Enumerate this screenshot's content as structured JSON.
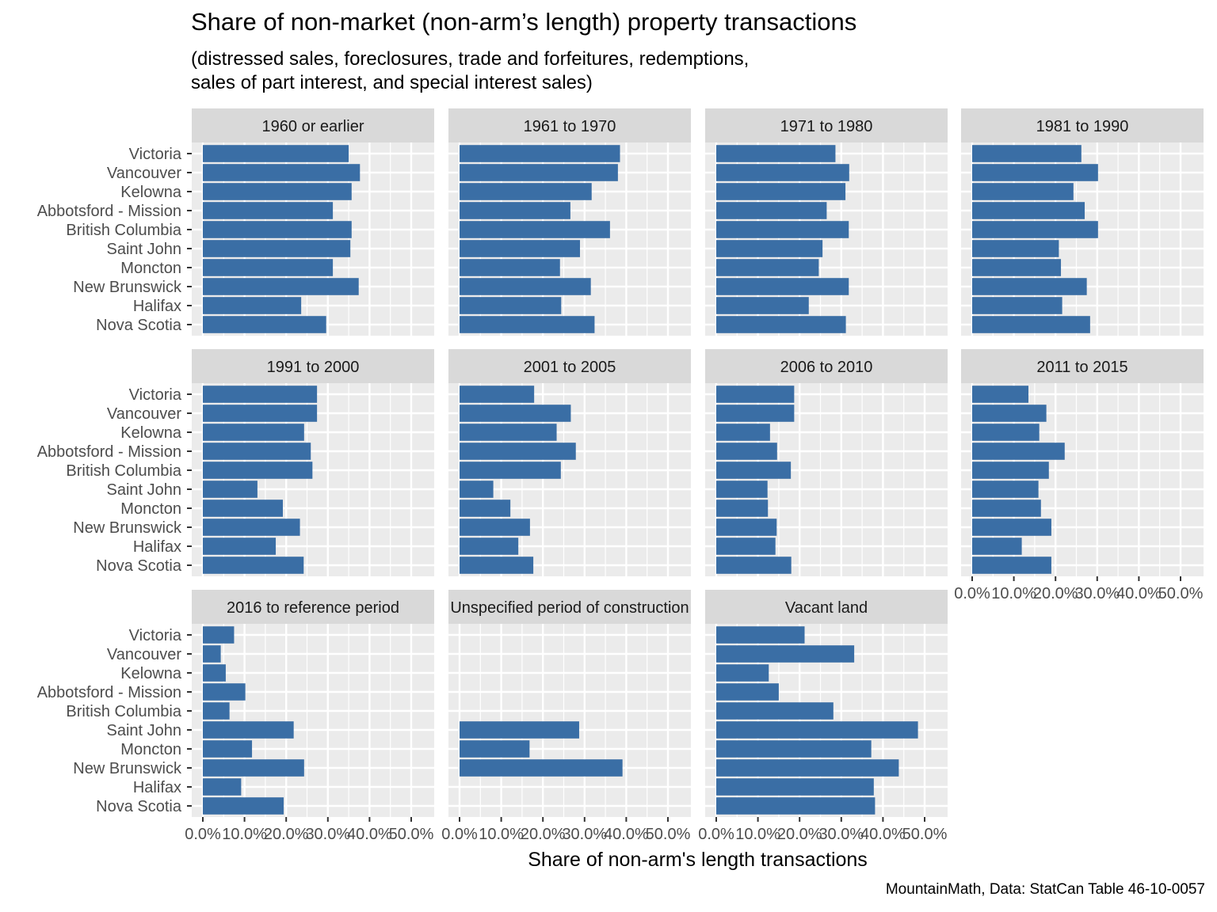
{
  "chart_data": {
    "type": "bar",
    "orientation": "horizontal",
    "title": "Share of non-market (non-arm’s length) property transactions",
    "subtitle_lines": [
      "(distressed sales, foreclosures, trade and forfeitures, redemptions,",
      "sales of part interest, and special interest sales)"
    ],
    "xlabel": "Share of non-arm's length transactions",
    "caption": "MountainMath, Data: StatCan Table 46-10-0057",
    "categories": [
      "Victoria",
      "Vancouver",
      "Kelowna",
      "Abbotsford - Mission",
      "British Columbia",
      "Saint John",
      "Moncton",
      "New Brunswick",
      "Halifax",
      "Nova Scotia"
    ],
    "xlim": [
      0,
      0.5
    ],
    "x_ticks": [
      0,
      0.1,
      0.2,
      0.3,
      0.4,
      0.5
    ],
    "x_tick_labels": [
      "0.0%",
      "10.0%",
      "20.0%",
      "30.0%",
      "40.0%",
      "50.0%"
    ],
    "grid": true,
    "bar_color": "#3a6ea5",
    "panel_background": "#ebebeb",
    "strip_background": "#d9d9d9",
    "facets": [
      {
        "label": "1960 or earlier",
        "values": [
          0.35,
          0.377,
          0.357,
          0.312,
          0.357,
          0.354,
          0.312,
          0.374,
          0.236,
          0.296
        ]
      },
      {
        "label": "1961 to 1970",
        "values": [
          0.385,
          0.38,
          0.317,
          0.266,
          0.361,
          0.289,
          0.241,
          0.315,
          0.244,
          0.324
        ]
      },
      {
        "label": "1971 to 1980",
        "values": [
          0.286,
          0.319,
          0.31,
          0.265,
          0.318,
          0.255,
          0.246,
          0.318,
          0.222,
          0.311
        ]
      },
      {
        "label": "1981 to 1990",
        "values": [
          0.262,
          0.302,
          0.243,
          0.27,
          0.302,
          0.208,
          0.213,
          0.275,
          0.216,
          0.283
        ]
      },
      {
        "label": "1991 to 2000",
        "values": [
          0.274,
          0.274,
          0.243,
          0.259,
          0.263,
          0.131,
          0.192,
          0.233,
          0.175,
          0.242
        ]
      },
      {
        "label": "2001 to 2005",
        "values": [
          0.179,
          0.267,
          0.233,
          0.279,
          0.243,
          0.081,
          0.122,
          0.169,
          0.141,
          0.177
        ]
      },
      {
        "label": "2006 to 2010",
        "values": [
          0.187,
          0.187,
          0.129,
          0.146,
          0.179,
          0.123,
          0.124,
          0.145,
          0.142,
          0.18
        ]
      },
      {
        "label": "2011 to 2015",
        "values": [
          0.135,
          0.178,
          0.161,
          0.222,
          0.184,
          0.159,
          0.165,
          0.19,
          0.119,
          0.19
        ]
      },
      {
        "label": "2016 to reference period",
        "values": [
          0.075,
          0.043,
          0.055,
          0.102,
          0.064,
          0.218,
          0.118,
          0.243,
          0.092,
          0.194
        ]
      },
      {
        "label": "Unspecified period of construction",
        "values": [
          null,
          null,
          null,
          null,
          null,
          0.287,
          0.168,
          0.391,
          null,
          null
        ]
      },
      {
        "label": "Vacant land",
        "values": [
          0.212,
          0.331,
          0.126,
          0.15,
          0.281,
          0.484,
          0.372,
          0.438,
          0.378,
          0.381
        ]
      }
    ]
  }
}
